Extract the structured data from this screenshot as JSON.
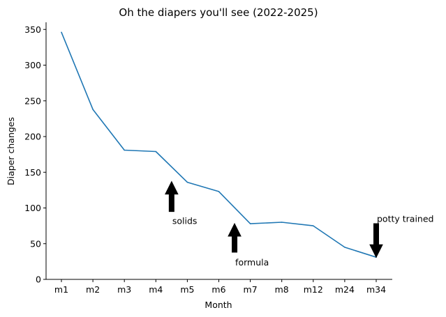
{
  "chart_data": {
    "type": "line",
    "title": "Oh the diapers you'll see (2022-2025)",
    "xlabel": "Month",
    "ylabel": "Diaper changes",
    "categories": [
      "m1",
      "m2",
      "m3",
      "m4",
      "m5",
      "m6",
      "m7",
      "m8",
      "m12",
      "m24",
      "m34"
    ],
    "series": [
      {
        "values": [
          346,
          238,
          181,
          179,
          136,
          123,
          78,
          80,
          75,
          45,
          31
        ],
        "color": "#1f77b4"
      }
    ],
    "ylim": [
      0,
      360
    ],
    "yticks": [
      0,
      50,
      100,
      150,
      200,
      250,
      300,
      350
    ],
    "grid": false,
    "spines": "left-bottom",
    "annotations": [
      {
        "text": "solids",
        "x": 3.5,
        "y": 82,
        "arrow": "up",
        "arrow_from_y": 95,
        "arrow_to_y": 137
      },
      {
        "text": "formula",
        "x": 5.5,
        "y": 24,
        "arrow": "up",
        "arrow_from_y": 38,
        "arrow_to_y": 78
      },
      {
        "text": "potty trained",
        "x": 10,
        "y": 85,
        "arrow": "down",
        "arrow_from_y": 78,
        "arrow_to_y": 31
      }
    ]
  }
}
